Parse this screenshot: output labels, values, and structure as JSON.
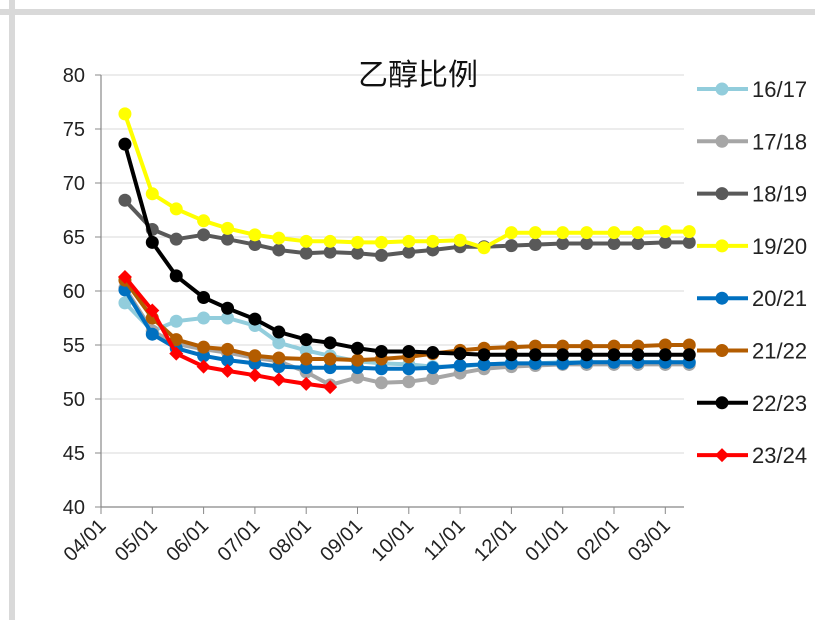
{
  "chart_data": {
    "type": "line",
    "title": "乙醇比例",
    "xlabel": "",
    "ylabel": "",
    "ylim": [
      40,
      80
    ],
    "yticks": [
      "80",
      "75",
      "70",
      "65",
      "60",
      "55",
      "50",
      "45",
      "40"
    ],
    "xticks": [
      "04/01",
      "05/01",
      "06/01",
      "07/01",
      "08/01",
      "09/01",
      "10/01",
      "11/01",
      "12/01",
      "01/01",
      "02/01",
      "03/01"
    ],
    "grid": "horizontal",
    "legend_position": "right",
    "x": [
      "04/15",
      "05/01",
      "05/15",
      "06/01",
      "06/15",
      "07/01",
      "07/15",
      "08/01",
      "08/15",
      "09/01",
      "09/15",
      "10/01",
      "10/15",
      "11/01",
      "11/15",
      "12/01",
      "12/15",
      "01/01",
      "01/15",
      "02/01",
      "02/15",
      "03/01",
      "03/15"
    ],
    "series": [
      {
        "name": "16/17",
        "color": "#92cddc",
        "marker": "circle",
        "values": [
          58.9,
          56.3,
          57.2,
          57.5,
          57.5,
          56.8,
          55.2,
          54.5,
          54.0,
          53.5,
          53.3,
          53.2,
          53.0,
          53.0,
          53.2,
          53.3,
          53.3,
          53.4,
          53.4,
          53.4,
          53.4,
          53.4,
          53.4
        ]
      },
      {
        "name": "17/18",
        "color": "#a6a6a6",
        "marker": "circle",
        "values": [
          60.3,
          56.3,
          55.1,
          54.6,
          54.3,
          53.8,
          53.5,
          52.5,
          51.3,
          52.0,
          51.5,
          51.6,
          51.9,
          52.4,
          52.8,
          53.0,
          53.1,
          53.2,
          53.2,
          53.2,
          53.2,
          53.2,
          53.2
        ]
      },
      {
        "name": "18/19",
        "color": "#595959",
        "marker": "circle",
        "values": [
          68.4,
          65.7,
          64.8,
          65.2,
          64.8,
          64.3,
          63.8,
          63.5,
          63.6,
          63.5,
          63.3,
          63.6,
          63.8,
          64.1,
          64.1,
          64.2,
          64.3,
          64.4,
          64.4,
          64.4,
          64.4,
          64.5,
          64.5
        ]
      },
      {
        "name": "19/20",
        "color": "#ffff00",
        "marker": "circle",
        "values": [
          76.4,
          69.0,
          67.6,
          66.5,
          65.8,
          65.2,
          64.9,
          64.6,
          64.6,
          64.5,
          64.5,
          64.6,
          64.6,
          64.7,
          64.0,
          65.4,
          65.4,
          65.4,
          65.4,
          65.4,
          65.4,
          65.5,
          65.5
        ]
      },
      {
        "name": "20/21",
        "color": "#0070c0",
        "marker": "circle",
        "values": [
          60.1,
          56.0,
          54.7,
          54.0,
          53.6,
          53.3,
          53.0,
          52.9,
          52.9,
          52.9,
          52.8,
          52.8,
          52.9,
          53.1,
          53.2,
          53.3,
          53.3,
          53.3,
          53.4,
          53.4,
          53.4,
          53.4,
          53.4
        ]
      },
      {
        "name": "21/22",
        "color": "#b35c00",
        "marker": "circle",
        "values": [
          61.0,
          57.5,
          55.5,
          54.8,
          54.6,
          54.0,
          53.8,
          53.7,
          53.7,
          53.6,
          53.7,
          53.9,
          54.2,
          54.5,
          54.7,
          54.8,
          54.9,
          54.9,
          54.9,
          54.9,
          54.9,
          55.0,
          55.0
        ]
      },
      {
        "name": "22/23",
        "color": "#000000",
        "marker": "circle",
        "values": [
          73.6,
          64.5,
          61.4,
          59.4,
          58.4,
          57.4,
          56.2,
          55.5,
          55.2,
          54.7,
          54.4,
          54.4,
          54.3,
          54.2,
          54.1,
          54.1,
          54.1,
          54.1,
          54.1,
          54.1,
          54.1,
          54.1,
          54.1
        ]
      },
      {
        "name": "23/24",
        "color": "#ff0000",
        "marker": "diamond",
        "values": [
          61.3,
          58.2,
          54.2,
          53.0,
          52.6,
          52.2,
          51.8,
          51.4,
          51.1,
          null,
          null,
          null,
          null,
          null,
          null,
          null,
          null,
          null,
          null,
          null,
          null,
          null,
          null
        ]
      }
    ]
  }
}
